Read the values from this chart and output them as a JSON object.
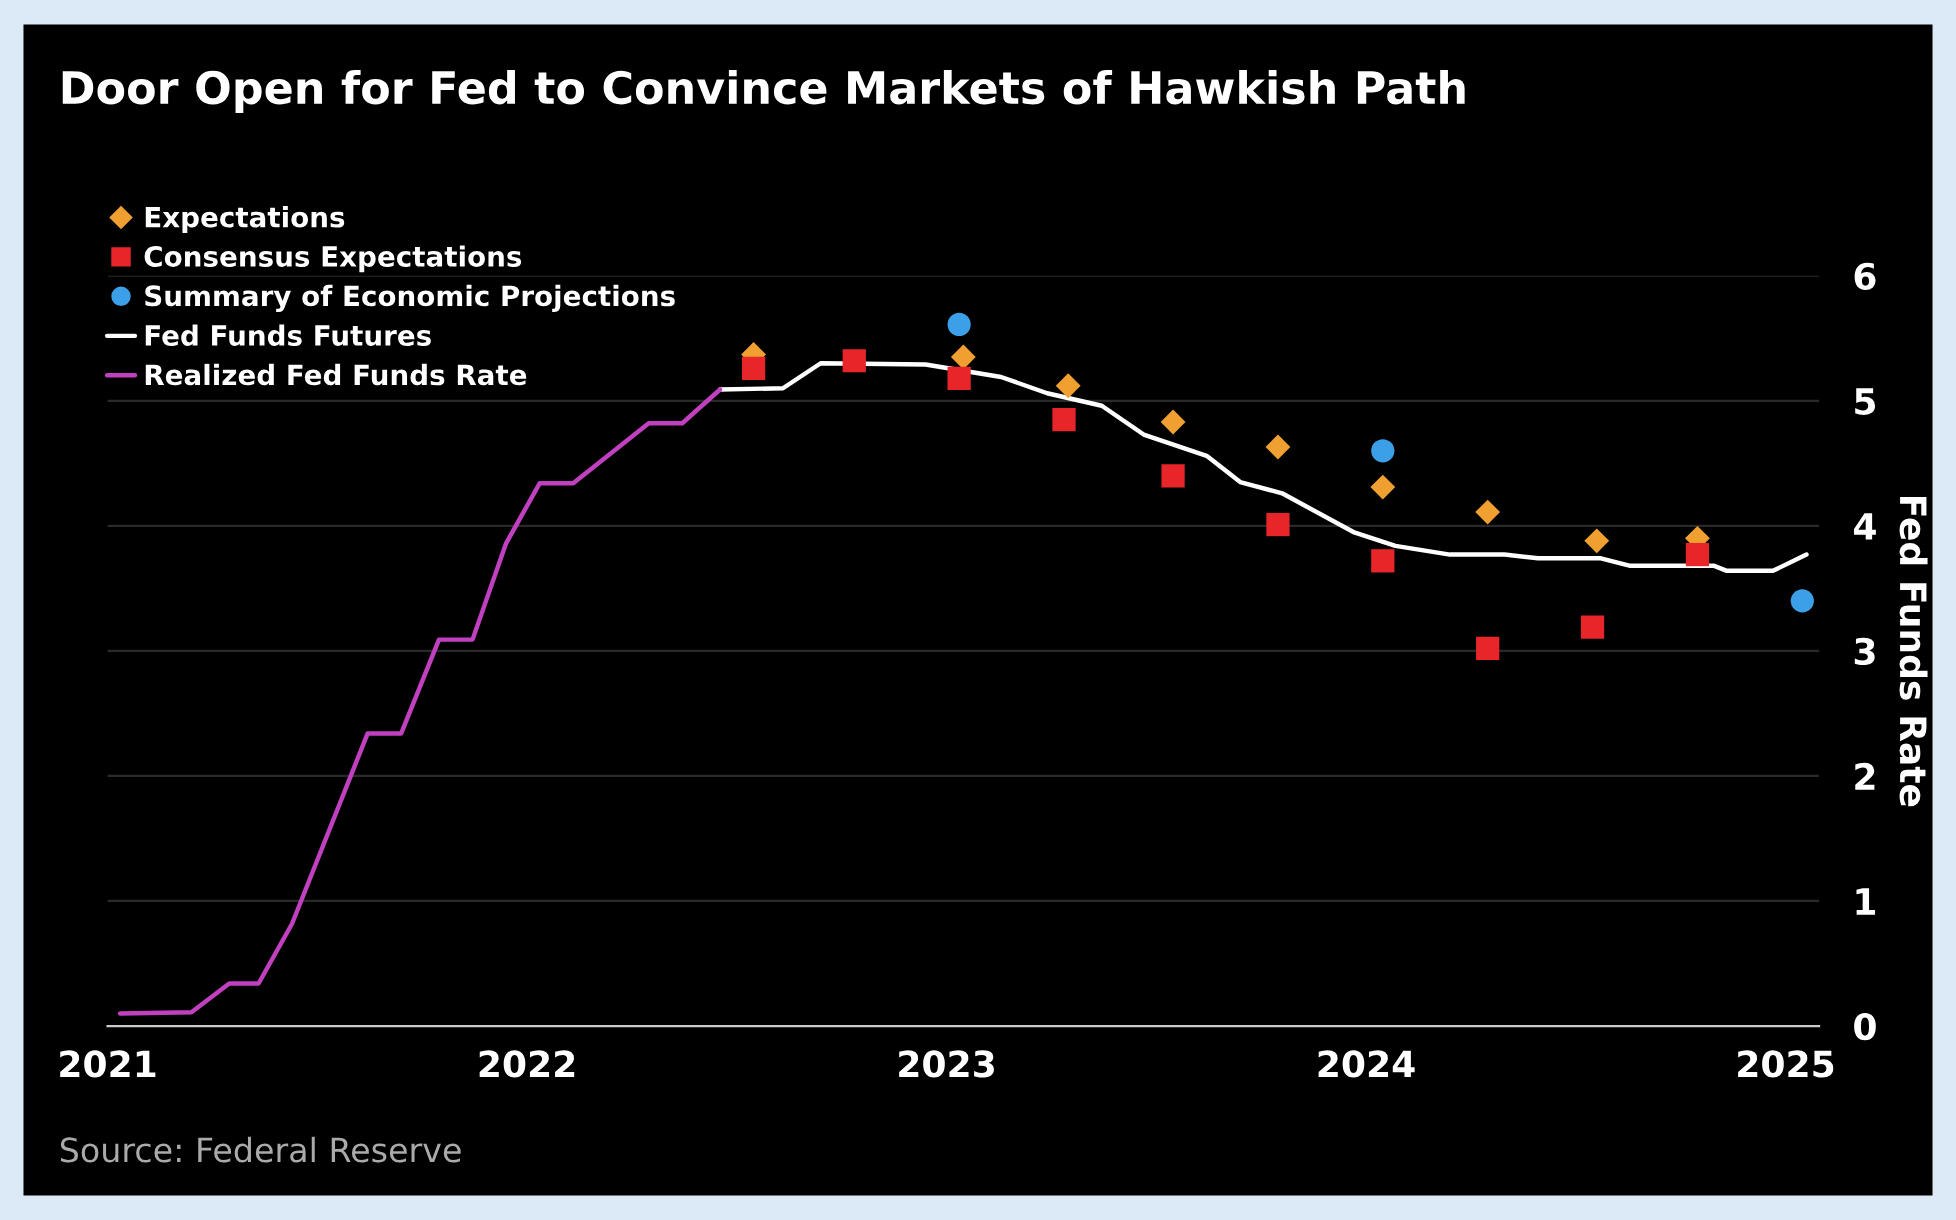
{
  "chart_data": {
    "type": "line",
    "title": "Door Open for Fed to Convince Markets of Hawkish Path",
    "ylabel": "Fed Funds Rate",
    "annotations": [
      "Source: Federal Reserve"
    ],
    "xlim": [
      2021,
      2025.08
    ],
    "xticks": [
      2021,
      2022,
      2023,
      2024,
      2025
    ],
    "ylim": [
      0,
      6
    ],
    "yticks": [
      0,
      1,
      2,
      3,
      4,
      5,
      6
    ],
    "grid": "y",
    "legend": "top left",
    "series": [
      {
        "name": "Expectations",
        "type": "scatter",
        "marker": "diamond",
        "color": "#f0a030",
        "x": [
          2022.54,
          2023.04,
          2023.29,
          2023.54,
          2023.79,
          2024.04,
          2024.29,
          2024.55,
          2024.79
        ],
        "values": [
          5.37,
          5.35,
          5.12,
          4.83,
          4.63,
          4.31,
          4.11,
          3.88,
          3.9
        ]
      },
      {
        "name": "Consensus Expectations",
        "type": "scatter",
        "marker": "square",
        "color": "#e8262a",
        "x": [
          2022.54,
          2022.78,
          2023.03,
          2023.28,
          2023.54,
          2023.79,
          2024.04,
          2024.29,
          2024.54,
          2024.79
        ],
        "values": [
          5.26,
          5.32,
          5.18,
          4.85,
          4.4,
          4.01,
          3.72,
          3.02,
          3.19,
          3.77
        ]
      },
      {
        "name": "Summary of Economic Projections",
        "type": "scatter",
        "marker": "circle",
        "color": "#3ca0e8",
        "x": [
          2023.03,
          2024.04,
          2025.04
        ],
        "values": [
          5.61,
          4.6,
          3.4
        ]
      },
      {
        "name": "Fed Funds Futures",
        "line_style": "solid",
        "color": "#ffffff",
        "x": [
          2022.46,
          2022.61,
          2022.7,
          2022.95,
          2023.13,
          2023.24,
          2023.37,
          2023.47,
          2023.62,
          2023.7,
          2023.8,
          2023.97,
          2024.07,
          2024.2,
          2024.33,
          2024.41,
          2024.56,
          2024.63,
          2024.83,
          2024.86,
          2024.97,
          2025.05
        ],
        "values": [
          5.09,
          5.1,
          5.3,
          5.29,
          5.19,
          5.06,
          4.96,
          4.73,
          4.56,
          4.35,
          4.26,
          3.95,
          3.84,
          3.77,
          3.77,
          3.74,
          3.74,
          3.68,
          3.68,
          3.64,
          3.64,
          3.77
        ]
      },
      {
        "name": "Realized Fed Funds Rate",
        "line_style": "solid",
        "color": "#c040c0",
        "x": [
          2021.03,
          2021.2,
          2021.29,
          2021.36,
          2021.44,
          2021.62,
          2021.7,
          2021.79,
          2021.87,
          2021.95,
          2022.03,
          2022.11,
          2022.29,
          2022.37,
          2022.46
        ],
        "values": [
          0.1,
          0.11,
          0.34,
          0.34,
          0.82,
          2.34,
          2.34,
          3.09,
          3.09,
          3.86,
          4.34,
          4.34,
          4.82,
          4.82,
          5.09
        ]
      }
    ]
  }
}
